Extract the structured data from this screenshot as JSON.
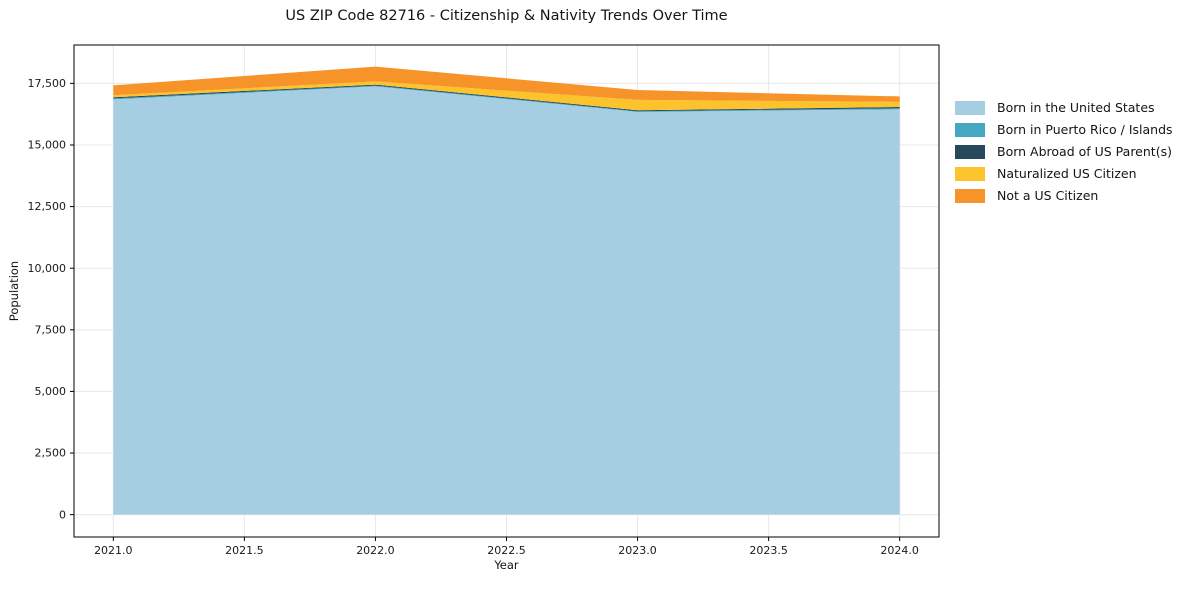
{
  "chart_data": {
    "type": "area",
    "stacked": true,
    "title": "US ZIP Code 82716 - Citizenship & Nativity Trends Over Time",
    "xlabel": "Year",
    "ylabel": "Population",
    "x": [
      2021,
      2022,
      2023,
      2024
    ],
    "series": [
      {
        "name": "Born in the United States",
        "color": "#a6cee3",
        "values": [
          16850,
          17380,
          16340,
          16450
        ]
      },
      {
        "name": "Born in Puerto Rico / Islands",
        "color": "#45a7c1",
        "values": [
          40,
          30,
          30,
          40
        ]
      },
      {
        "name": "Born Abroad of US Parent(s)",
        "color": "#26495e",
        "values": [
          45,
          40,
          40,
          50
        ]
      },
      {
        "name": "Naturalized US Citizen",
        "color": "#fcc32d",
        "values": [
          85,
          130,
          420,
          210
        ]
      },
      {
        "name": "Not a US Citizen",
        "color": "#f79429",
        "values": [
          400,
          600,
          400,
          220
        ]
      }
    ],
    "xlim": [
      2020.85,
      2024.15
    ],
    "ylim": [
      -907,
      19057
    ],
    "xticks": {
      "values": [
        2021.0,
        2021.5,
        2022.0,
        2022.5,
        2023.0,
        2023.5,
        2024.0
      ],
      "labels": [
        "2021.0",
        "2021.5",
        "2022.0",
        "2022.5",
        "2023.0",
        "2023.5",
        "2024.0"
      ]
    },
    "yticks": {
      "values": [
        0,
        2500,
        5000,
        7500,
        10000,
        12500,
        15000,
        17500
      ],
      "labels": [
        "0",
        "2,500",
        "5,000",
        "7,500",
        "10,000",
        "12,500",
        "15,000",
        "17,500"
      ]
    },
    "grid": true,
    "grid_color": "#e7e7e7",
    "spine_color": "#000000",
    "legend_position": "right"
  }
}
